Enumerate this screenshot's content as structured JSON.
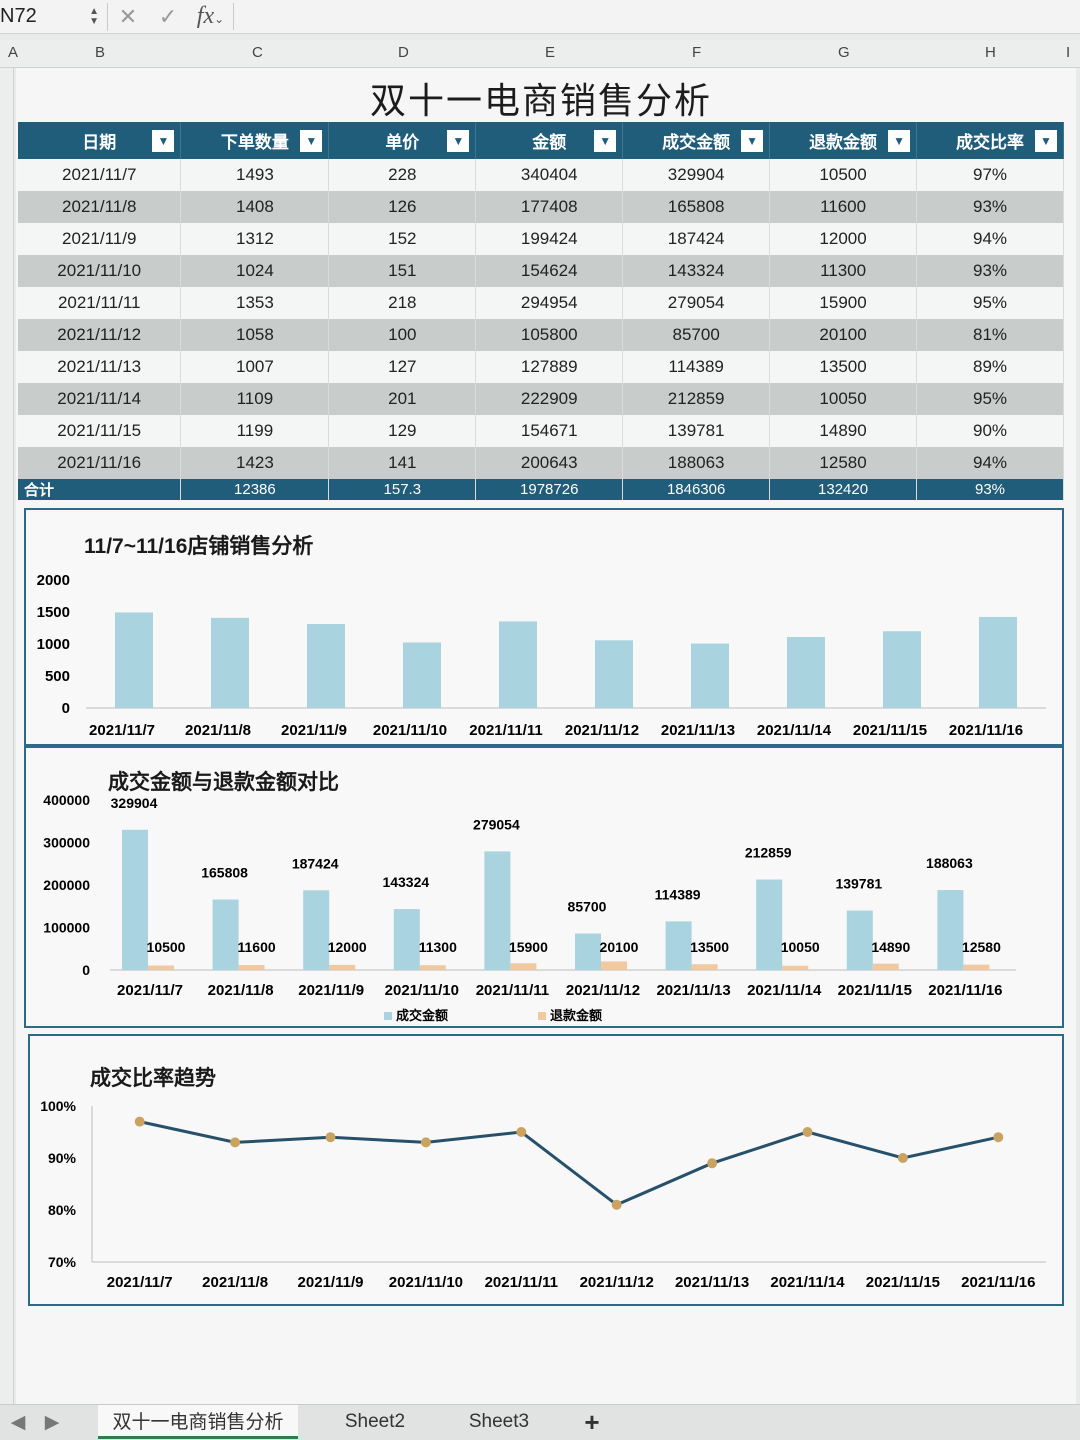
{
  "formula_bar": {
    "cell_ref": "N72",
    "fx_label": "fx"
  },
  "columns": [
    "A",
    "B",
    "C",
    "D",
    "E",
    "F",
    "G",
    "H",
    "I"
  ],
  "title": "双十一电商销售分析",
  "table": {
    "headers": [
      "日期",
      "下单数量",
      "单价",
      "金额",
      "成交金额",
      "退款金额",
      "成交比率"
    ],
    "rows": [
      [
        "2021/11/7",
        "1493",
        "228",
        "340404",
        "329904",
        "10500",
        "97%"
      ],
      [
        "2021/11/8",
        "1408",
        "126",
        "177408",
        "165808",
        "11600",
        "93%"
      ],
      [
        "2021/11/9",
        "1312",
        "152",
        "199424",
        "187424",
        "12000",
        "94%"
      ],
      [
        "2021/11/10",
        "1024",
        "151",
        "154624",
        "143324",
        "11300",
        "93%"
      ],
      [
        "2021/11/11",
        "1353",
        "218",
        "294954",
        "279054",
        "15900",
        "95%"
      ],
      [
        "2021/11/12",
        "1058",
        "100",
        "105800",
        "85700",
        "20100",
        "81%"
      ],
      [
        "2021/11/13",
        "1007",
        "127",
        "127889",
        "114389",
        "13500",
        "89%"
      ],
      [
        "2021/11/14",
        "1109",
        "201",
        "222909",
        "212859",
        "10050",
        "95%"
      ],
      [
        "2021/11/15",
        "1199",
        "129",
        "154671",
        "139781",
        "14890",
        "90%"
      ],
      [
        "2021/11/16",
        "1423",
        "141",
        "200643",
        "188063",
        "12580",
        "94%"
      ]
    ],
    "total": [
      "合计",
      "12386",
      "157.3",
      "1978726",
      "1846306",
      "132420",
      "93%"
    ]
  },
  "chart_data": [
    {
      "type": "bar",
      "title": "11/7~11/16店铺销售分析",
      "categories": [
        "2021/11/7",
        "2021/11/8",
        "2021/11/9",
        "2021/11/10",
        "2021/11/11",
        "2021/11/12",
        "2021/11/13",
        "2021/11/14",
        "2021/11/15",
        "2021/11/16"
      ],
      "values": [
        1493,
        1408,
        1312,
        1024,
        1353,
        1058,
        1007,
        1109,
        1199,
        1423
      ],
      "yticks": [
        "2000",
        "1500",
        "1000",
        "500",
        "0"
      ],
      "ylim": [
        0,
        2000
      ],
      "color": "#a9d3de"
    },
    {
      "type": "bar",
      "title": "成交金额与退款金额对比",
      "categories": [
        "2021/11/7",
        "2021/11/8",
        "2021/11/9",
        "2021/11/10",
        "2021/11/11",
        "2021/11/12",
        "2021/11/13",
        "2021/11/14",
        "2021/11/15",
        "2021/11/16"
      ],
      "series": [
        {
          "name": "成交金额",
          "values": [
            329904,
            165808,
            187424,
            143324,
            279054,
            85700,
            114389,
            212859,
            139781,
            188063
          ],
          "color": "#a9d3de"
        },
        {
          "name": "退款金额",
          "values": [
            10500,
            11600,
            12000,
            11300,
            15900,
            20100,
            13500,
            10050,
            14890,
            12580
          ],
          "color": "#f0c9a0"
        }
      ],
      "yticks": [
        "400000",
        "300000",
        "200000",
        "100000",
        "0"
      ],
      "ylim": [
        0,
        400000
      ],
      "legend": "bottom"
    },
    {
      "type": "line",
      "title": "成交比率趋势",
      "categories": [
        "2021/11/7",
        "2021/11/8",
        "2021/11/9",
        "2021/11/10",
        "2021/11/11",
        "2021/11/12",
        "2021/11/13",
        "2021/11/14",
        "2021/11/15",
        "2021/11/16"
      ],
      "values": [
        97,
        93,
        94,
        93,
        95,
        81,
        89,
        95,
        90,
        94
      ],
      "yticks": [
        "100%",
        "90%",
        "80%",
        "70%"
      ],
      "ylim": [
        70,
        100
      ],
      "line_color": "#27506a",
      "marker_color": "#c9a35f"
    }
  ],
  "tabs": [
    {
      "label": "双十一电商销售分析",
      "active": true
    },
    {
      "label": "Sheet2",
      "active": false
    },
    {
      "label": "Sheet3",
      "active": false
    },
    {
      "label": "+",
      "active": false
    }
  ]
}
